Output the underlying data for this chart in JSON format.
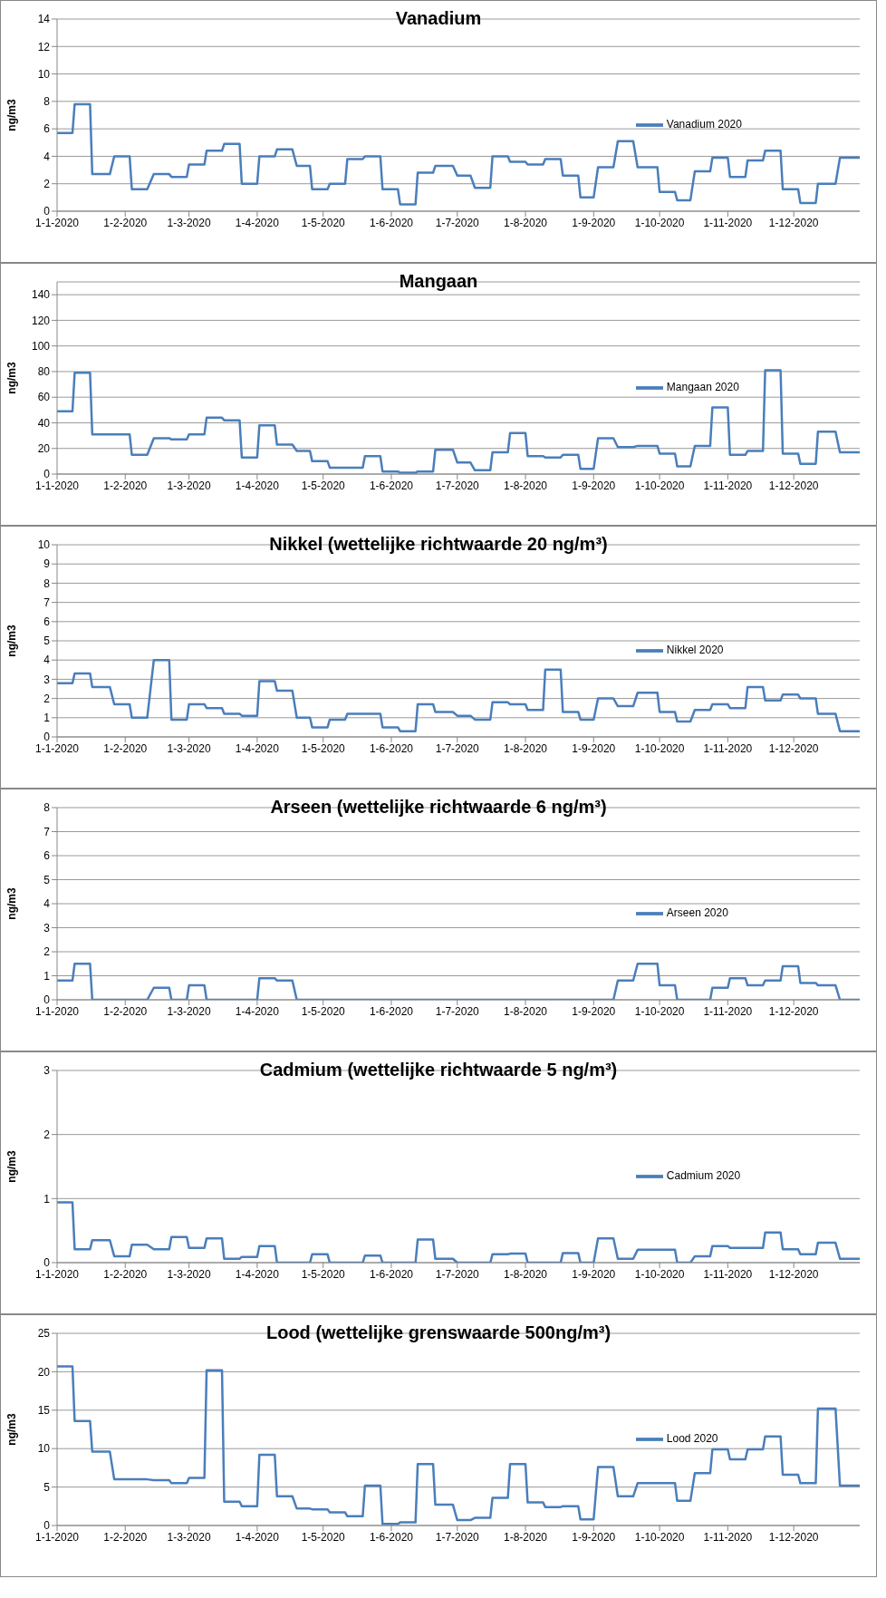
{
  "chart_data": [
    {
      "type": "line",
      "title": "Vanadium",
      "ylabel": "ng/m3",
      "grid": "y",
      "legend": "right",
      "ylim": [
        0,
        14
      ],
      "yticks": [
        0,
        2,
        4,
        6,
        8,
        10,
        12,
        14
      ],
      "xlim": [
        "2020-01-01",
        "2020-12-31"
      ],
      "xticks": [
        {
          "value": "2020-01-01",
          "label": "1-1-2020"
        },
        {
          "value": "2020-02-01",
          "label": "1-2-2020"
        },
        {
          "value": "2020-03-01",
          "label": "1-3-2020"
        },
        {
          "value": "2020-04-01",
          "label": "1-4-2020"
        },
        {
          "value": "2020-05-01",
          "label": "1-5-2020"
        },
        {
          "value": "2020-06-01",
          "label": "1-6-2020"
        },
        {
          "value": "2020-07-01",
          "label": "1-7-2020"
        },
        {
          "value": "2020-08-01",
          "label": "1-8-2020"
        },
        {
          "value": "2020-09-01",
          "label": "1-9-2020"
        },
        {
          "value": "2020-10-01",
          "label": "1-10-2020"
        },
        {
          "value": "2020-11-01",
          "label": "1-11-2020"
        },
        {
          "value": "2020-12-01",
          "label": "1-12-2020"
        }
      ],
      "x": [
        "2020-01-01",
        "2020-01-08",
        "2020-01-09",
        "2020-01-16",
        "2020-01-17",
        "2020-01-25",
        "2020-01-27",
        "2020-02-03",
        "2020-02-04",
        "2020-02-11",
        "2020-02-14",
        "2020-02-21",
        "2020-02-22",
        "2020-02-29",
        "2020-03-01",
        "2020-03-08",
        "2020-03-09",
        "2020-03-16",
        "2020-03-17",
        "2020-03-24",
        "2020-03-25",
        "2020-04-01",
        "2020-04-02",
        "2020-04-09",
        "2020-04-10",
        "2020-04-17",
        "2020-04-19",
        "2020-04-25",
        "2020-04-26",
        "2020-05-03",
        "2020-05-04",
        "2020-05-11",
        "2020-05-12",
        "2020-05-19",
        "2020-05-20",
        "2020-05-27",
        "2020-05-28",
        "2020-06-04",
        "2020-06-05",
        "2020-06-12",
        "2020-06-13",
        "2020-06-20",
        "2020-06-21",
        "2020-06-29",
        "2020-07-01",
        "2020-07-07",
        "2020-07-09",
        "2020-07-16",
        "2020-07-17",
        "2020-07-24",
        "2020-07-25",
        "2020-08-01",
        "2020-08-02",
        "2020-08-09",
        "2020-08-10",
        "2020-08-17",
        "2020-08-18",
        "2020-08-25",
        "2020-08-26",
        "2020-09-01",
        "2020-09-03",
        "2020-09-10",
        "2020-09-12",
        "2020-09-19",
        "2020-09-21",
        "2020-09-30",
        "2020-10-01",
        "2020-10-08",
        "2020-10-09",
        "2020-10-15",
        "2020-10-17",
        "2020-10-24",
        "2020-10-25",
        "2020-11-01",
        "2020-11-02",
        "2020-11-09",
        "2020-11-10",
        "2020-11-17",
        "2020-11-18",
        "2020-11-25",
        "2020-11-26",
        "2020-12-03",
        "2020-12-04",
        "2020-12-11",
        "2020-12-12",
        "2020-12-20",
        "2020-12-22",
        "2020-12-31"
      ],
      "series": [
        {
          "name": "Vanadium 2020",
          "color": "#4a7ebb",
          "values": [
            5.7,
            5.7,
            7.8,
            7.8,
            2.7,
            2.7,
            4,
            4,
            1.6,
            1.6,
            2.7,
            2.7,
            2.5,
            2.5,
            3.4,
            3.4,
            4.4,
            4.4,
            4.9,
            4.9,
            2,
            2,
            4,
            4,
            4.5,
            4.5,
            3.3,
            3.3,
            1.6,
            1.6,
            2,
            2,
            3.8,
            3.8,
            4,
            4,
            1.6,
            1.6,
            0.5,
            0.5,
            2.8,
            2.8,
            3.3,
            3.3,
            2.6,
            2.6,
            1.7,
            1.7,
            4,
            4,
            3.6,
            3.6,
            3.4,
            3.4,
            3.8,
            3.8,
            2.6,
            2.6,
            1,
            1,
            3.2,
            3.2,
            5.1,
            5.1,
            3.2,
            3.2,
            1.4,
            1.4,
            0.8,
            0.8,
            2.9,
            2.9,
            3.9,
            3.9,
            2.5,
            2.5,
            3.7,
            3.7,
            4.4,
            4.4,
            1.6,
            1.6,
            0.6,
            0.6,
            2,
            2,
            3.9,
            3.9
          ]
        }
      ]
    },
    {
      "type": "line",
      "title": "Mangaan",
      "ylabel": "ng/m3",
      "grid": "y",
      "legend": "right",
      "ylim": [
        0,
        150
      ],
      "yticks": [
        0,
        20,
        40,
        60,
        80,
        100,
        120,
        140
      ],
      "xlim": [
        "2020-01-01",
        "2020-12-31"
      ],
      "xticks": [
        {
          "value": "2020-01-01",
          "label": "1-1-2020"
        },
        {
          "value": "2020-02-01",
          "label": "1-2-2020"
        },
        {
          "value": "2020-03-01",
          "label": "1-3-2020"
        },
        {
          "value": "2020-04-01",
          "label": "1-4-2020"
        },
        {
          "value": "2020-05-01",
          "label": "1-5-2020"
        },
        {
          "value": "2020-06-01",
          "label": "1-6-2020"
        },
        {
          "value": "2020-07-01",
          "label": "1-7-2020"
        },
        {
          "value": "2020-08-01",
          "label": "1-8-2020"
        },
        {
          "value": "2020-09-01",
          "label": "1-9-2020"
        },
        {
          "value": "2020-10-01",
          "label": "1-10-2020"
        },
        {
          "value": "2020-11-01",
          "label": "1-11-2020"
        },
        {
          "value": "2020-12-01",
          "label": "1-12-2020"
        }
      ],
      "x": [
        "2020-01-01",
        "2020-01-08",
        "2020-01-09",
        "2020-01-16",
        "2020-01-17",
        "2020-01-25",
        "2020-01-27",
        "2020-02-03",
        "2020-02-04",
        "2020-02-11",
        "2020-02-14",
        "2020-02-21",
        "2020-02-22",
        "2020-02-29",
        "2020-03-01",
        "2020-03-08",
        "2020-03-09",
        "2020-03-16",
        "2020-03-17",
        "2020-03-24",
        "2020-03-25",
        "2020-04-01",
        "2020-04-02",
        "2020-04-09",
        "2020-04-10",
        "2020-04-17",
        "2020-04-19",
        "2020-04-25",
        "2020-04-26",
        "2020-05-03",
        "2020-05-04",
        "2020-05-11",
        "2020-05-12",
        "2020-05-19",
        "2020-05-20",
        "2020-05-27",
        "2020-05-28",
        "2020-06-04",
        "2020-06-05",
        "2020-06-12",
        "2020-06-13",
        "2020-06-20",
        "2020-06-21",
        "2020-06-29",
        "2020-07-01",
        "2020-07-07",
        "2020-07-09",
        "2020-07-16",
        "2020-07-17",
        "2020-07-24",
        "2020-07-25",
        "2020-08-01",
        "2020-08-02",
        "2020-08-09",
        "2020-08-10",
        "2020-08-17",
        "2020-08-18",
        "2020-08-25",
        "2020-08-26",
        "2020-09-01",
        "2020-09-03",
        "2020-09-10",
        "2020-09-12",
        "2020-09-19",
        "2020-09-21",
        "2020-09-30",
        "2020-10-01",
        "2020-10-08",
        "2020-10-09",
        "2020-10-15",
        "2020-10-17",
        "2020-10-24",
        "2020-10-25",
        "2020-11-01",
        "2020-11-02",
        "2020-11-09",
        "2020-11-10",
        "2020-11-17",
        "2020-11-18",
        "2020-11-25",
        "2020-11-26",
        "2020-12-03",
        "2020-12-04",
        "2020-12-11",
        "2020-12-12",
        "2020-12-20",
        "2020-12-22",
        "2020-12-31"
      ],
      "series": [
        {
          "name": "Mangaan 2020",
          "color": "#4a7ebb",
          "values": [
            49,
            49,
            79,
            79,
            31,
            31,
            31,
            31,
            15,
            15,
            28,
            28,
            27,
            27,
            31,
            31,
            44,
            44,
            42,
            42,
            13,
            13,
            38,
            38,
            23,
            23,
            18,
            18,
            10,
            10,
            5,
            5,
            5,
            5,
            14,
            14,
            2,
            2,
            1,
            1,
            2,
            2,
            19,
            19,
            9,
            9,
            3,
            3,
            17,
            17,
            32,
            32,
            14,
            14,
            13,
            13,
            15,
            15,
            4,
            4,
            28,
            28,
            21,
            21,
            22,
            22,
            16,
            16,
            6,
            6,
            22,
            22,
            52,
            52,
            15,
            15,
            18,
            18,
            81,
            81,
            16,
            16,
            8,
            8,
            33,
            33,
            17,
            17
          ]
        }
      ]
    },
    {
      "type": "line",
      "title": "Nikkel (wettelijke richtwaarde 20 ng/m³)",
      "ylabel": "ng/m3",
      "grid": "y",
      "legend": "right",
      "ylim": [
        0,
        10
      ],
      "yticks": [
        0,
        1,
        2,
        3,
        4,
        5,
        6,
        7,
        8,
        9,
        10
      ],
      "xlim": [
        "2020-01-01",
        "2020-12-31"
      ],
      "xticks": [
        {
          "value": "2020-01-01",
          "label": "1-1-2020"
        },
        {
          "value": "2020-02-01",
          "label": "1-2-2020"
        },
        {
          "value": "2020-03-01",
          "label": "1-3-2020"
        },
        {
          "value": "2020-04-01",
          "label": "1-4-2020"
        },
        {
          "value": "2020-05-01",
          "label": "1-5-2020"
        },
        {
          "value": "2020-06-01",
          "label": "1-6-2020"
        },
        {
          "value": "2020-07-01",
          "label": "1-7-2020"
        },
        {
          "value": "2020-08-01",
          "label": "1-8-2020"
        },
        {
          "value": "2020-09-01",
          "label": "1-9-2020"
        },
        {
          "value": "2020-10-01",
          "label": "1-10-2020"
        },
        {
          "value": "2020-11-01",
          "label": "1-11-2020"
        },
        {
          "value": "2020-12-01",
          "label": "1-12-2020"
        }
      ],
      "x": [
        "2020-01-01",
        "2020-01-08",
        "2020-01-09",
        "2020-01-16",
        "2020-01-17",
        "2020-01-25",
        "2020-01-27",
        "2020-02-03",
        "2020-02-04",
        "2020-02-11",
        "2020-02-14",
        "2020-02-21",
        "2020-02-22",
        "2020-02-29",
        "2020-03-01",
        "2020-03-08",
        "2020-03-09",
        "2020-03-16",
        "2020-03-17",
        "2020-03-24",
        "2020-03-25",
        "2020-04-01",
        "2020-04-02",
        "2020-04-09",
        "2020-04-10",
        "2020-04-17",
        "2020-04-19",
        "2020-04-25",
        "2020-04-26",
        "2020-05-03",
        "2020-05-04",
        "2020-05-11",
        "2020-05-12",
        "2020-05-19",
        "2020-05-20",
        "2020-05-27",
        "2020-05-28",
        "2020-06-04",
        "2020-06-05",
        "2020-06-12",
        "2020-06-13",
        "2020-06-20",
        "2020-06-21",
        "2020-06-29",
        "2020-07-01",
        "2020-07-07",
        "2020-07-09",
        "2020-07-16",
        "2020-07-17",
        "2020-07-24",
        "2020-07-25",
        "2020-08-01",
        "2020-08-02",
        "2020-08-09",
        "2020-08-10",
        "2020-08-17",
        "2020-08-18",
        "2020-08-25",
        "2020-08-26",
        "2020-09-01",
        "2020-09-03",
        "2020-09-10",
        "2020-09-12",
        "2020-09-19",
        "2020-09-21",
        "2020-09-30",
        "2020-10-01",
        "2020-10-08",
        "2020-10-09",
        "2020-10-15",
        "2020-10-17",
        "2020-10-24",
        "2020-10-25",
        "2020-11-01",
        "2020-11-02",
        "2020-11-09",
        "2020-11-10",
        "2020-11-17",
        "2020-11-18",
        "2020-11-25",
        "2020-11-26",
        "2020-12-03",
        "2020-12-04",
        "2020-12-11",
        "2020-12-12",
        "2020-12-20",
        "2020-12-22",
        "2020-12-31"
      ],
      "series": [
        {
          "name": "Nikkel 2020",
          "color": "#4a7ebb",
          "values": [
            2.8,
            2.8,
            3.3,
            3.3,
            2.6,
            2.6,
            1.7,
            1.7,
            1,
            1,
            4,
            4,
            0.9,
            0.9,
            1.7,
            1.7,
            1.5,
            1.5,
            1.2,
            1.2,
            1.1,
            1.1,
            2.9,
            2.9,
            2.4,
            2.4,
            1,
            1,
            0.5,
            0.5,
            0.9,
            0.9,
            1.2,
            1.2,
            1.2,
            1.2,
            0.5,
            0.5,
            0.3,
            0.3,
            1.7,
            1.7,
            1.3,
            1.3,
            1.1,
            1.1,
            0.9,
            0.9,
            1.8,
            1.8,
            1.7,
            1.7,
            1.4,
            1.4,
            3.5,
            3.5,
            1.3,
            1.3,
            0.9,
            0.9,
            2,
            2,
            1.6,
            1.6,
            2.3,
            2.3,
            1.3,
            1.3,
            0.8,
            0.8,
            1.4,
            1.4,
            1.7,
            1.7,
            1.5,
            1.5,
            2.6,
            2.6,
            1.9,
            1.9,
            2.2,
            2.2,
            2,
            2,
            1.2,
            1.2,
            0.3,
            0.3
          ]
        }
      ]
    },
    {
      "type": "line",
      "title": "Arseen (wettelijke richtwaarde 6 ng/m³)",
      "ylabel": "ng/m3",
      "grid": "y",
      "legend": "right",
      "ylim": [
        0,
        8
      ],
      "yticks": [
        0,
        1,
        2,
        3,
        4,
        5,
        6,
        7,
        8
      ],
      "xlim": [
        "2020-01-01",
        "2020-12-31"
      ],
      "xticks": [
        {
          "value": "2020-01-01",
          "label": "1-1-2020"
        },
        {
          "value": "2020-02-01",
          "label": "1-2-2020"
        },
        {
          "value": "2020-03-01",
          "label": "1-3-2020"
        },
        {
          "value": "2020-04-01",
          "label": "1-4-2020"
        },
        {
          "value": "2020-05-01",
          "label": "1-5-2020"
        },
        {
          "value": "2020-06-01",
          "label": "1-6-2020"
        },
        {
          "value": "2020-07-01",
          "label": "1-7-2020"
        },
        {
          "value": "2020-08-01",
          "label": "1-8-2020"
        },
        {
          "value": "2020-09-01",
          "label": "1-9-2020"
        },
        {
          "value": "2020-10-01",
          "label": "1-10-2020"
        },
        {
          "value": "2020-11-01",
          "label": "1-11-2020"
        },
        {
          "value": "2020-12-01",
          "label": "1-12-2020"
        }
      ],
      "x": [
        "2020-01-01",
        "2020-01-08",
        "2020-01-09",
        "2020-01-16",
        "2020-01-17",
        "2020-01-25",
        "2020-01-27",
        "2020-02-03",
        "2020-02-04",
        "2020-02-11",
        "2020-02-14",
        "2020-02-21",
        "2020-02-22",
        "2020-02-29",
        "2020-03-01",
        "2020-03-08",
        "2020-03-09",
        "2020-03-16",
        "2020-03-17",
        "2020-03-24",
        "2020-03-25",
        "2020-04-01",
        "2020-04-02",
        "2020-04-09",
        "2020-04-10",
        "2020-04-17",
        "2020-04-19",
        "2020-04-25",
        "2020-04-26",
        "2020-05-03",
        "2020-05-04",
        "2020-05-11",
        "2020-05-12",
        "2020-05-19",
        "2020-05-20",
        "2020-05-27",
        "2020-05-28",
        "2020-06-04",
        "2020-06-05",
        "2020-06-12",
        "2020-06-13",
        "2020-06-20",
        "2020-06-21",
        "2020-06-29",
        "2020-07-01",
        "2020-07-07",
        "2020-07-09",
        "2020-07-16",
        "2020-07-17",
        "2020-07-24",
        "2020-07-25",
        "2020-08-01",
        "2020-08-02",
        "2020-08-09",
        "2020-08-10",
        "2020-08-17",
        "2020-08-18",
        "2020-08-25",
        "2020-08-26",
        "2020-09-01",
        "2020-09-03",
        "2020-09-10",
        "2020-09-12",
        "2020-09-19",
        "2020-09-21",
        "2020-09-30",
        "2020-10-01",
        "2020-10-08",
        "2020-10-09",
        "2020-10-15",
        "2020-10-17",
        "2020-10-24",
        "2020-10-25",
        "2020-11-01",
        "2020-11-02",
        "2020-11-09",
        "2020-11-10",
        "2020-11-17",
        "2020-11-18",
        "2020-11-25",
        "2020-11-26",
        "2020-12-03",
        "2020-12-04",
        "2020-12-11",
        "2020-12-12",
        "2020-12-20",
        "2020-12-22",
        "2020-12-31"
      ],
      "series": [
        {
          "name": "Arseen 2020",
          "color": "#4a7ebb",
          "values": [
            0.8,
            0.8,
            1.5,
            1.5,
            0,
            0,
            0,
            0,
            0,
            0,
            0.5,
            0.5,
            0,
            0,
            0.6,
            0.6,
            0,
            0,
            0,
            0,
            0,
            0,
            0.9,
            0.9,
            0.8,
            0.8,
            0,
            0,
            0,
            0,
            0,
            0,
            0,
            0,
            0,
            0,
            0,
            0,
            0,
            0,
            0,
            0,
            0,
            0,
            0,
            0,
            0,
            0,
            0,
            0,
            0,
            0,
            0,
            0,
            0,
            0,
            0,
            0,
            0,
            0,
            0,
            0,
            0.8,
            0.8,
            1.5,
            1.5,
            0.6,
            0.6,
            0,
            0,
            0,
            0,
            0.5,
            0.5,
            0.9,
            0.9,
            0.6,
            0.6,
            0.8,
            0.8,
            1.4,
            1.4,
            0.7,
            0.7,
            0.6,
            0.6,
            0,
            0
          ]
        }
      ]
    },
    {
      "type": "line",
      "title": "Cadmium (wettelijke richtwaarde 5 ng/m³)",
      "ylabel": "ng/m3",
      "grid": "y",
      "legend": "right",
      "ylim": [
        0,
        3
      ],
      "yticks": [
        0,
        1,
        2,
        3
      ],
      "xlim": [
        "2020-01-01",
        "2020-12-31"
      ],
      "xticks": [
        {
          "value": "2020-01-01",
          "label": "1-1-2020"
        },
        {
          "value": "2020-02-01",
          "label": "1-2-2020"
        },
        {
          "value": "2020-03-01",
          "label": "1-3-2020"
        },
        {
          "value": "2020-04-01",
          "label": "1-4-2020"
        },
        {
          "value": "2020-05-01",
          "label": "1-5-2020"
        },
        {
          "value": "2020-06-01",
          "label": "1-6-2020"
        },
        {
          "value": "2020-07-01",
          "label": "1-7-2020"
        },
        {
          "value": "2020-08-01",
          "label": "1-8-2020"
        },
        {
          "value": "2020-09-01",
          "label": "1-9-2020"
        },
        {
          "value": "2020-10-01",
          "label": "1-10-2020"
        },
        {
          "value": "2020-11-01",
          "label": "1-11-2020"
        },
        {
          "value": "2020-12-01",
          "label": "1-12-2020"
        }
      ],
      "x": [
        "2020-01-01",
        "2020-01-08",
        "2020-01-09",
        "2020-01-16",
        "2020-01-17",
        "2020-01-25",
        "2020-01-27",
        "2020-02-03",
        "2020-02-04",
        "2020-02-11",
        "2020-02-14",
        "2020-02-21",
        "2020-02-22",
        "2020-02-29",
        "2020-03-01",
        "2020-03-08",
        "2020-03-09",
        "2020-03-16",
        "2020-03-17",
        "2020-03-24",
        "2020-03-25",
        "2020-04-01",
        "2020-04-02",
        "2020-04-09",
        "2020-04-10",
        "2020-04-17",
        "2020-04-19",
        "2020-04-25",
        "2020-04-26",
        "2020-05-03",
        "2020-05-04",
        "2020-05-11",
        "2020-05-12",
        "2020-05-19",
        "2020-05-20",
        "2020-05-27",
        "2020-05-28",
        "2020-06-04",
        "2020-06-05",
        "2020-06-12",
        "2020-06-13",
        "2020-06-20",
        "2020-06-21",
        "2020-06-29",
        "2020-07-01",
        "2020-07-07",
        "2020-07-09",
        "2020-07-16",
        "2020-07-17",
        "2020-07-24",
        "2020-07-25",
        "2020-08-01",
        "2020-08-02",
        "2020-08-09",
        "2020-08-10",
        "2020-08-17",
        "2020-08-18",
        "2020-08-25",
        "2020-08-26",
        "2020-09-01",
        "2020-09-03",
        "2020-09-10",
        "2020-09-12",
        "2020-09-19",
        "2020-09-21",
        "2020-09-30",
        "2020-10-01",
        "2020-10-08",
        "2020-10-09",
        "2020-10-15",
        "2020-10-17",
        "2020-10-24",
        "2020-10-25",
        "2020-11-01",
        "2020-11-02",
        "2020-11-09",
        "2020-11-10",
        "2020-11-17",
        "2020-11-18",
        "2020-11-25",
        "2020-11-26",
        "2020-12-03",
        "2020-12-04",
        "2020-12-11",
        "2020-12-12",
        "2020-12-20",
        "2020-12-22",
        "2020-12-31"
      ],
      "series": [
        {
          "name": "Cadmium 2020",
          "color": "#4a7ebb",
          "values": [
            0.94,
            0.94,
            0.21,
            0.21,
            0.35,
            0.35,
            0.1,
            0.1,
            0.28,
            0.28,
            0.21,
            0.21,
            0.4,
            0.4,
            0.23,
            0.23,
            0.38,
            0.38,
            0.06,
            0.06,
            0.09,
            0.09,
            0.26,
            0.26,
            0,
            0,
            0,
            0,
            0.13,
            0.13,
            0,
            0,
            0,
            0,
            0.11,
            0.11,
            0,
            0,
            0,
            0,
            0.36,
            0.36,
            0.06,
            0.06,
            0,
            0,
            0,
            0,
            0.13,
            0.13,
            0.14,
            0.14,
            0,
            0,
            0,
            0,
            0.15,
            0.15,
            0,
            0,
            0.38,
            0.38,
            0.06,
            0.06,
            0.2,
            0.2,
            0.2,
            0.2,
            0,
            0,
            0.1,
            0.1,
            0.26,
            0.26,
            0.23,
            0.23,
            0.23,
            0.23,
            0.47,
            0.47,
            0.21,
            0.21,
            0.13,
            0.13,
            0.31,
            0.31,
            0.06,
            0.06
          ]
        }
      ]
    },
    {
      "type": "line",
      "title": "Lood (wettelijke grenswaarde 500ng/m³)",
      "ylabel": "ng/m3",
      "grid": "y",
      "legend": "right",
      "ylim": [
        0,
        25
      ],
      "yticks": [
        0,
        5,
        10,
        15,
        20,
        25
      ],
      "xlim": [
        "2020-01-01",
        "2020-12-31"
      ],
      "xticks": [
        {
          "value": "2020-01-01",
          "label": "1-1-2020"
        },
        {
          "value": "2020-02-01",
          "label": "1-2-2020"
        },
        {
          "value": "2020-03-01",
          "label": "1-3-2020"
        },
        {
          "value": "2020-04-01",
          "label": "1-4-2020"
        },
        {
          "value": "2020-05-01",
          "label": "1-5-2020"
        },
        {
          "value": "2020-06-01",
          "label": "1-6-2020"
        },
        {
          "value": "2020-07-01",
          "label": "1-7-2020"
        },
        {
          "value": "2020-08-01",
          "label": "1-8-2020"
        },
        {
          "value": "2020-09-01",
          "label": "1-9-2020"
        },
        {
          "value": "2020-10-01",
          "label": "1-10-2020"
        },
        {
          "value": "2020-11-01",
          "label": "1-11-2020"
        },
        {
          "value": "2020-12-01",
          "label": "1-12-2020"
        }
      ],
      "x": [
        "2020-01-01",
        "2020-01-08",
        "2020-01-09",
        "2020-01-16",
        "2020-01-17",
        "2020-01-25",
        "2020-01-27",
        "2020-02-03",
        "2020-02-04",
        "2020-02-11",
        "2020-02-14",
        "2020-02-21",
        "2020-02-22",
        "2020-02-29",
        "2020-03-01",
        "2020-03-08",
        "2020-03-09",
        "2020-03-16",
        "2020-03-17",
        "2020-03-24",
        "2020-03-25",
        "2020-04-01",
        "2020-04-02",
        "2020-04-09",
        "2020-04-10",
        "2020-04-17",
        "2020-04-19",
        "2020-04-25",
        "2020-04-26",
        "2020-05-03",
        "2020-05-04",
        "2020-05-11",
        "2020-05-12",
        "2020-05-19",
        "2020-05-20",
        "2020-05-27",
        "2020-05-28",
        "2020-06-04",
        "2020-06-05",
        "2020-06-12",
        "2020-06-13",
        "2020-06-20",
        "2020-06-21",
        "2020-06-29",
        "2020-07-01",
        "2020-07-07",
        "2020-07-09",
        "2020-07-16",
        "2020-07-17",
        "2020-07-24",
        "2020-07-25",
        "2020-08-01",
        "2020-08-02",
        "2020-08-09",
        "2020-08-10",
        "2020-08-17",
        "2020-08-18",
        "2020-08-25",
        "2020-08-26",
        "2020-09-01",
        "2020-09-03",
        "2020-09-10",
        "2020-09-12",
        "2020-09-19",
        "2020-09-21",
        "2020-09-30",
        "2020-10-01",
        "2020-10-08",
        "2020-10-09",
        "2020-10-15",
        "2020-10-17",
        "2020-10-24",
        "2020-10-25",
        "2020-11-01",
        "2020-11-02",
        "2020-11-09",
        "2020-11-10",
        "2020-11-17",
        "2020-11-18",
        "2020-11-25",
        "2020-11-26",
        "2020-12-03",
        "2020-12-04",
        "2020-12-11",
        "2020-12-12",
        "2020-12-20",
        "2020-12-22",
        "2020-12-31"
      ],
      "series": [
        {
          "name": "Lood 2020",
          "color": "#4a7ebb",
          "values": [
            20.7,
            20.7,
            13.6,
            13.6,
            9.6,
            9.6,
            6,
            6,
            6,
            6,
            5.9,
            5.9,
            5.5,
            5.5,
            6.2,
            6.2,
            20.2,
            20.2,
            3.1,
            3.1,
            2.5,
            2.5,
            9.2,
            9.2,
            3.8,
            3.8,
            2.2,
            2.2,
            2.1,
            2.1,
            1.7,
            1.7,
            1.2,
            1.2,
            5.2,
            5.2,
            0.2,
            0.2,
            0.4,
            0.4,
            8,
            8,
            2.7,
            2.7,
            0.7,
            0.7,
            1,
            1,
            3.6,
            3.6,
            8,
            8,
            3,
            3,
            2.4,
            2.4,
            2.5,
            2.5,
            0.8,
            0.8,
            7.6,
            7.6,
            3.8,
            3.8,
            5.5,
            5.5,
            5.5,
            5.5,
            3.2,
            3.2,
            6.8,
            6.8,
            9.9,
            9.9,
            8.6,
            8.6,
            9.9,
            9.9,
            11.6,
            11.6,
            6.6,
            6.6,
            5.5,
            5.5,
            15.2,
            15.2,
            5.2,
            5.2
          ]
        }
      ]
    }
  ]
}
